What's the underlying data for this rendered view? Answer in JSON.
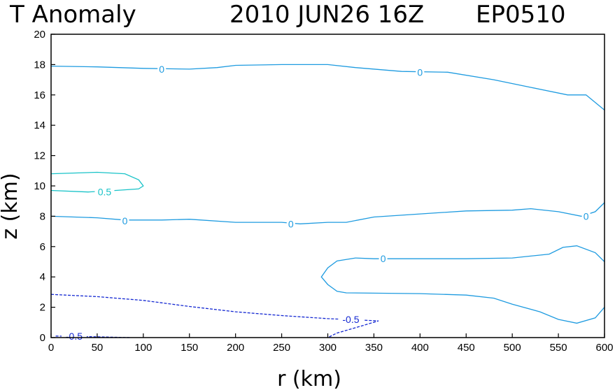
{
  "header": {
    "title": "T Anomaly",
    "datetime": "2010 JUN26 16Z",
    "storm_id": "EP0510"
  },
  "chart_data": {
    "type": "contour",
    "xlabel": "r (km)",
    "ylabel": "z (km)",
    "xlim": [
      0,
      600
    ],
    "ylim": [
      0,
      20
    ],
    "xticks": [
      0,
      50,
      100,
      150,
      200,
      250,
      300,
      350,
      400,
      450,
      500,
      550,
      600
    ],
    "yticks": [
      0,
      2,
      4,
      6,
      8,
      10,
      12,
      14,
      16,
      18,
      20
    ],
    "grid": false,
    "colors": {
      "zero": "#1e9be0",
      "pos": "#19c3c8",
      "neg": "#1428d2"
    },
    "contours": [
      {
        "level": 0,
        "style": "solid",
        "color_key": "zero",
        "points": [
          [
            0,
            17.9
          ],
          [
            50,
            17.85
          ],
          [
            100,
            17.75
          ],
          [
            150,
            17.7
          ],
          [
            180,
            17.8
          ],
          [
            200,
            17.95
          ],
          [
            250,
            18.0
          ],
          [
            300,
            18.0
          ],
          [
            330,
            17.8
          ],
          [
            380,
            17.55
          ],
          [
            430,
            17.5
          ],
          [
            480,
            17.0
          ],
          [
            520,
            16.5
          ],
          [
            560,
            16.0
          ],
          [
            580,
            16.0
          ],
          [
            600,
            15.0
          ]
        ],
        "labels": [
          {
            "text": "0",
            "x": 120,
            "y": 17.7
          },
          {
            "text": "0",
            "x": 400,
            "y": 17.5
          }
        ]
      },
      {
        "level": 0.5,
        "style": "solid",
        "color_key": "pos",
        "points": [
          [
            0,
            10.8
          ],
          [
            50,
            10.9
          ],
          [
            80,
            10.8
          ],
          [
            95,
            10.4
          ],
          [
            100,
            10.0
          ],
          [
            95,
            9.8
          ],
          [
            70,
            9.7
          ],
          [
            40,
            9.6
          ],
          [
            0,
            9.7
          ]
        ],
        "labels": [
          {
            "text": "0.5",
            "x": 58,
            "y": 9.6
          }
        ]
      },
      {
        "level": 0,
        "style": "solid",
        "color_key": "zero",
        "points": [
          [
            0,
            8.0
          ],
          [
            50,
            7.9
          ],
          [
            80,
            7.75
          ],
          [
            120,
            7.75
          ],
          [
            150,
            7.8
          ],
          [
            200,
            7.6
          ],
          [
            250,
            7.6
          ],
          [
            270,
            7.5
          ],
          [
            300,
            7.6
          ],
          [
            320,
            7.6
          ],
          [
            350,
            7.95
          ],
          [
            400,
            8.15
          ],
          [
            450,
            8.35
          ],
          [
            500,
            8.4
          ],
          [
            520,
            8.5
          ],
          [
            550,
            8.3
          ],
          [
            575,
            8.0
          ],
          [
            590,
            8.3
          ],
          [
            600,
            8.9
          ]
        ],
        "labels": [
          {
            "text": "0",
            "x": 80,
            "y": 7.7
          },
          {
            "text": "0",
            "x": 260,
            "y": 7.5
          },
          {
            "text": "0",
            "x": 580,
            "y": 8.0
          }
        ]
      },
      {
        "level": 0,
        "style": "solid",
        "color_key": "zero",
        "points": [
          [
            600,
            5.0
          ],
          [
            590,
            5.6
          ],
          [
            570,
            6.05
          ],
          [
            555,
            5.95
          ],
          [
            540,
            5.5
          ],
          [
            500,
            5.25
          ],
          [
            450,
            5.2
          ],
          [
            400,
            5.2
          ],
          [
            350,
            5.2
          ],
          [
            330,
            5.25
          ],
          [
            310,
            5.05
          ],
          [
            300,
            4.6
          ],
          [
            293,
            4.0
          ],
          [
            300,
            3.5
          ],
          [
            310,
            3.05
          ],
          [
            320,
            2.95
          ],
          [
            400,
            2.9
          ],
          [
            450,
            2.8
          ],
          [
            480,
            2.6
          ],
          [
            500,
            2.2
          ],
          [
            530,
            1.7
          ],
          [
            550,
            1.2
          ],
          [
            570,
            0.95
          ],
          [
            590,
            1.3
          ],
          [
            600,
            2.0
          ]
        ],
        "labels": [
          {
            "text": "0",
            "x": 360,
            "y": 5.2
          }
        ]
      },
      {
        "level": -0.5,
        "style": "dashed",
        "color_key": "neg",
        "points": [
          [
            0,
            2.85
          ],
          [
            50,
            2.7
          ],
          [
            100,
            2.45
          ],
          [
            150,
            2.05
          ],
          [
            200,
            1.7
          ],
          [
            250,
            1.45
          ],
          [
            300,
            1.25
          ],
          [
            320,
            1.2
          ],
          [
            355,
            1.1
          ],
          [
            330,
            0.65
          ],
          [
            310,
            0.3
          ],
          [
            300,
            0.0
          ]
        ],
        "labels": [
          {
            "text": "-0.5",
            "x": 325,
            "y": 1.2
          }
        ]
      },
      {
        "level": -0.5,
        "style": "dashed",
        "color_key": "neg",
        "points": [
          [
            5,
            0.1
          ],
          [
            50,
            0.05
          ],
          [
            85,
            0.0
          ]
        ],
        "labels": [
          {
            "text": "-0.5",
            "x": 25,
            "y": 0.1
          }
        ]
      }
    ]
  }
}
